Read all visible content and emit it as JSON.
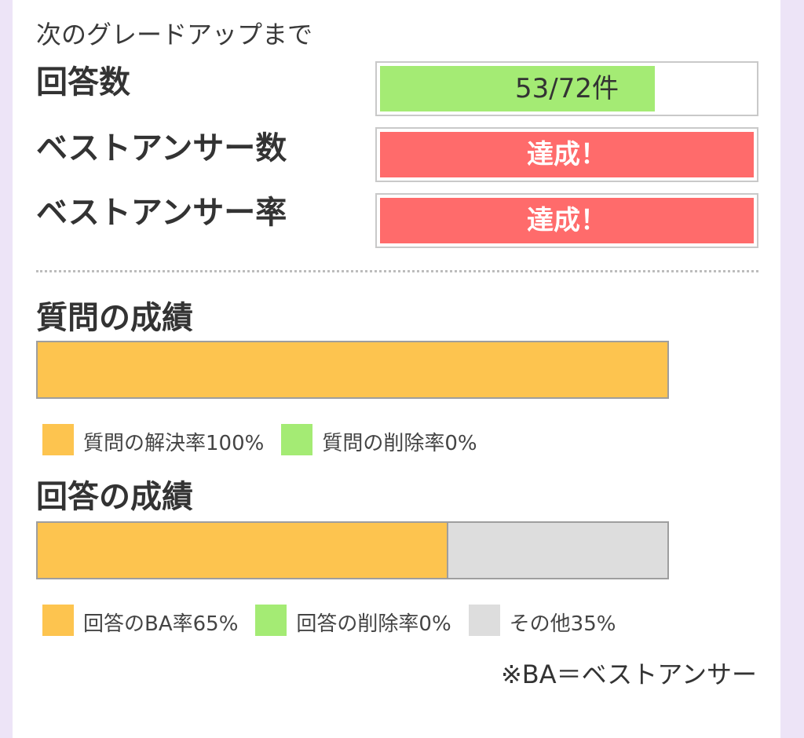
{
  "grade_up": {
    "title": "次のグレードアップまで",
    "rows": [
      {
        "label": "回答数",
        "value_text": "53/72件",
        "progress": 0.736,
        "status": "in-progress"
      },
      {
        "label": "ベストアンサー数",
        "value_text": "達成！",
        "progress": 1.0,
        "status": "achieved"
      },
      {
        "label": "ベストアンサー率",
        "value_text": "達成！",
        "progress": 1.0,
        "status": "achieved"
      }
    ]
  },
  "question_stats": {
    "title": "質問の成績",
    "segments": [
      {
        "key": "resolved",
        "fraction": 1.0,
        "color": "#fdc44f"
      },
      {
        "key": "deleted",
        "fraction": 0.0,
        "color": "#a4eb74"
      }
    ],
    "legend": [
      {
        "label": "質問の解決率100%",
        "color": "#fdc44f"
      },
      {
        "label": "質問の削除率0%",
        "color": "#a4eb74"
      }
    ]
  },
  "answer_stats": {
    "title": "回答の成績",
    "segments": [
      {
        "key": "ba",
        "fraction": 0.65,
        "color": "#fdc44f"
      },
      {
        "key": "deleted",
        "fraction": 0.0,
        "color": "#a4eb74"
      },
      {
        "key": "other",
        "fraction": 0.35,
        "color": "#dddddd"
      }
    ],
    "legend": [
      {
        "label": "回答のBA率65%",
        "color": "#fdc44f"
      },
      {
        "label": "回答の削除率0%",
        "color": "#a4eb74"
      },
      {
        "label": "その他35%",
        "color": "#dddddd"
      }
    ]
  },
  "footnote": "※BA＝ベストアンサー",
  "colors": {
    "background": "#ede4f7",
    "progress_green": "#a4eb74",
    "achieved_red": "#ff6b6b",
    "orange": "#fdc44f",
    "gray": "#dddddd"
  }
}
